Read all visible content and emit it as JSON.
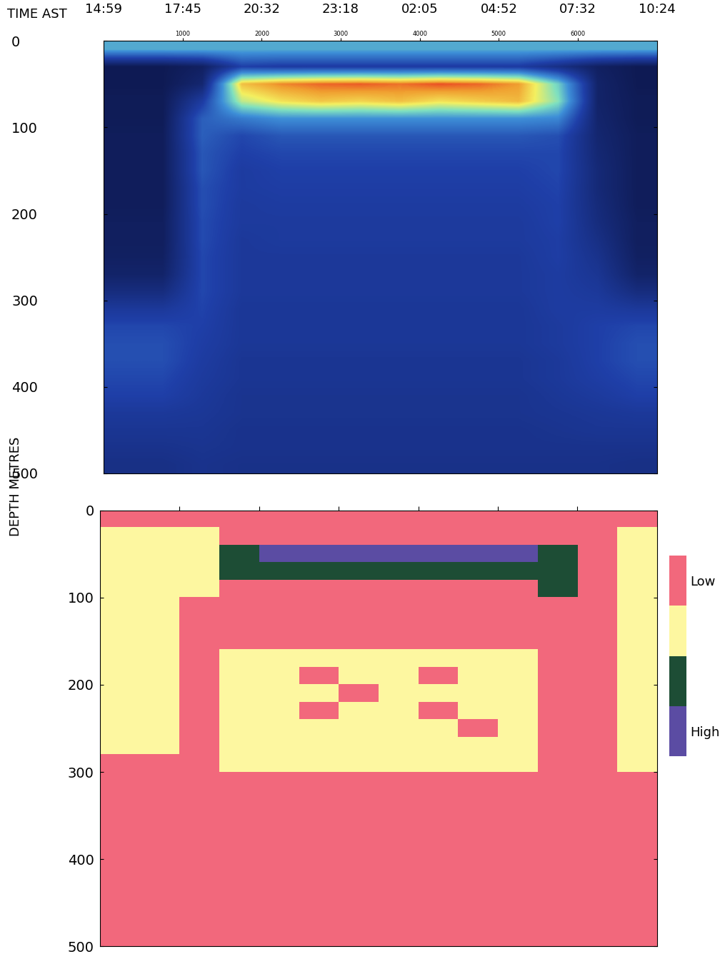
{
  "chart_data": [
    {
      "type": "heatmap",
      "x2_label": "TIME AST",
      "y_label": "DEPTH METRES",
      "xlim": [
        0,
        7000
      ],
      "ylim": [
        500,
        0
      ],
      "xticks": [
        1000,
        2000,
        3000,
        4000,
        5000,
        6000
      ],
      "yticks": [
        0,
        100,
        200,
        300,
        400,
        500
      ],
      "x2ticks": [
        {
          "value": 0,
          "label": "14:59"
        },
        {
          "value": 1000,
          "label": "17:45"
        },
        {
          "value": 2000,
          "label": "20:32"
        },
        {
          "value": 3000,
          "label": "23:18"
        },
        {
          "value": 4000,
          "label": "02:05"
        },
        {
          "value": 5000,
          "label": "04:52"
        },
        {
          "value": 6000,
          "label": "07:32"
        },
        {
          "value": 7000,
          "label": "10:24"
        }
      ],
      "color_range": [
        0,
        100
      ],
      "cells": [
        [
          55,
          55,
          55,
          55,
          55,
          55,
          55,
          55,
          55,
          55,
          55,
          55,
          55,
          55
        ],
        [
          6,
          6,
          10,
          30,
          28,
          28,
          28,
          28,
          28,
          28,
          28,
          20,
          10,
          6
        ],
        [
          6,
          6,
          14,
          85,
          92,
          95,
          96,
          94,
          97,
          95,
          90,
          62,
          12,
          6
        ],
        [
          7,
          7,
          28,
          72,
          80,
          84,
          82,
          85,
          80,
          83,
          86,
          66,
          12,
          7
        ],
        [
          7,
          7,
          38,
          45,
          50,
          50,
          50,
          50,
          50,
          50,
          50,
          48,
          13,
          7
        ],
        [
          8,
          8,
          38,
          32,
          36,
          36,
          36,
          36,
          36,
          36,
          36,
          34,
          14,
          8
        ],
        [
          8,
          8,
          36,
          30,
          32,
          32,
          32,
          32,
          32,
          32,
          32,
          32,
          15,
          8
        ],
        [
          8,
          8,
          36,
          28,
          30,
          30,
          30,
          30,
          30,
          30,
          30,
          32,
          16,
          8
        ],
        [
          8,
          8,
          34,
          28,
          29,
          29,
          29,
          29,
          29,
          29,
          29,
          31,
          16,
          8
        ],
        [
          8,
          8,
          34,
          27,
          28,
          28,
          28,
          28,
          28,
          28,
          28,
          30,
          17,
          8
        ],
        [
          9,
          9,
          33,
          27,
          27,
          27,
          27,
          27,
          27,
          27,
          27,
          30,
          18,
          9
        ],
        [
          9,
          9,
          33,
          26,
          27,
          27,
          27,
          27,
          27,
          27,
          27,
          29,
          20,
          9
        ],
        [
          10,
          10,
          32,
          26,
          26,
          26,
          26,
          26,
          26,
          26,
          26,
          29,
          22,
          10
        ],
        [
          12,
          12,
          32,
          26,
          26,
          26,
          26,
          26,
          26,
          26,
          26,
          28,
          24,
          12
        ],
        [
          18,
          18,
          32,
          26,
          26,
          26,
          26,
          26,
          26,
          26,
          26,
          28,
          26,
          18
        ],
        [
          26,
          26,
          31,
          25,
          25,
          25,
          25,
          25,
          25,
          25,
          25,
          28,
          28,
          26
        ],
        [
          32,
          32,
          30,
          25,
          25,
          25,
          25,
          25,
          25,
          25,
          25,
          27,
          30,
          32
        ],
        [
          34,
          34,
          29,
          25,
          25,
          25,
          25,
          25,
          25,
          25,
          25,
          27,
          30,
          34
        ],
        [
          34,
          34,
          28,
          24,
          24,
          24,
          24,
          24,
          24,
          24,
          24,
          26,
          30,
          34
        ],
        [
          32,
          32,
          27,
          24,
          24,
          24,
          24,
          24,
          24,
          24,
          24,
          26,
          29,
          32
        ],
        [
          30,
          30,
          26,
          23,
          23,
          23,
          23,
          23,
          23,
          23,
          23,
          25,
          27,
          30
        ],
        [
          26,
          26,
          25,
          23,
          23,
          23,
          23,
          23,
          23,
          23,
          23,
          24,
          25,
          26
        ],
        [
          24,
          24,
          24,
          22,
          22,
          22,
          22,
          22,
          22,
          22,
          22,
          23,
          24,
          24
        ],
        [
          22,
          22,
          23,
          22,
          22,
          22,
          22,
          22,
          22,
          22,
          22,
          22,
          22,
          22
        ],
        [
          20,
          20,
          22,
          21,
          21,
          21,
          21,
          21,
          21,
          21,
          21,
          21,
          21,
          20
        ]
      ]
    },
    {
      "type": "heatmap",
      "xlim": [
        0,
        7000
      ],
      "ylim": [
        500,
        0
      ],
      "xticks": [
        1000,
        2000,
        3000,
        4000,
        5000,
        6000
      ],
      "yticks": [
        0,
        100,
        200,
        300,
        400,
        500
      ],
      "tick_labels": "y",
      "colors": [
        "#f2687c",
        "#fdf7a0",
        "#1d4d35",
        "#5b4ca3"
      ],
      "color_bounds": [
        0.5,
        1.5,
        2.5,
        3.5,
        4.5
      ],
      "color_range": [
        0.5,
        4.5
      ],
      "color_ticks": [
        {
          "value": 1,
          "label": "Low"
        },
        {
          "value": 4,
          "label": "High"
        }
      ],
      "cells": [
        [
          1,
          1,
          1,
          1,
          1,
          1,
          1,
          1,
          1,
          1,
          1,
          1,
          1,
          1
        ],
        [
          2,
          2,
          2,
          1,
          1,
          1,
          1,
          1,
          1,
          1,
          1,
          1,
          1,
          2
        ],
        [
          2,
          2,
          2,
          3,
          4,
          4,
          4,
          4,
          4,
          4,
          4,
          3,
          1,
          2
        ],
        [
          2,
          2,
          2,
          3,
          3,
          3,
          3,
          3,
          3,
          3,
          3,
          3,
          1,
          2
        ],
        [
          2,
          2,
          2,
          1,
          1,
          1,
          1,
          1,
          1,
          1,
          1,
          3,
          1,
          2
        ],
        [
          2,
          2,
          1,
          1,
          1,
          1,
          1,
          1,
          1,
          1,
          1,
          1,
          1,
          2
        ],
        [
          2,
          2,
          1,
          1,
          1,
          1,
          1,
          1,
          1,
          1,
          1,
          1,
          1,
          2
        ],
        [
          2,
          2,
          1,
          1,
          1,
          1,
          1,
          1,
          1,
          1,
          1,
          1,
          1,
          2
        ],
        [
          2,
          2,
          1,
          2,
          2,
          2,
          2,
          2,
          2,
          2,
          2,
          1,
          1,
          2
        ],
        [
          2,
          2,
          1,
          2,
          2,
          1,
          2,
          2,
          1,
          2,
          2,
          1,
          1,
          2
        ],
        [
          2,
          2,
          1,
          2,
          2,
          2,
          1,
          2,
          2,
          2,
          2,
          1,
          1,
          2
        ],
        [
          2,
          2,
          1,
          2,
          2,
          1,
          2,
          2,
          1,
          2,
          2,
          1,
          1,
          2
        ],
        [
          2,
          2,
          1,
          2,
          2,
          2,
          2,
          2,
          2,
          1,
          2,
          1,
          1,
          2
        ],
        [
          2,
          2,
          1,
          2,
          2,
          2,
          2,
          2,
          2,
          2,
          2,
          1,
          1,
          2
        ],
        [
          1,
          1,
          1,
          2,
          2,
          2,
          2,
          2,
          2,
          2,
          2,
          1,
          1,
          2
        ],
        [
          1,
          1,
          1,
          1,
          1,
          1,
          1,
          1,
          1,
          1,
          1,
          1,
          1,
          1
        ],
        [
          1,
          1,
          1,
          1,
          1,
          1,
          1,
          1,
          1,
          1,
          1,
          1,
          1,
          1
        ],
        [
          1,
          1,
          1,
          1,
          1,
          1,
          1,
          1,
          1,
          1,
          1,
          1,
          1,
          1
        ],
        [
          1,
          1,
          1,
          1,
          1,
          1,
          1,
          1,
          1,
          1,
          1,
          1,
          1,
          1
        ],
        [
          1,
          1,
          1,
          1,
          1,
          1,
          1,
          1,
          1,
          1,
          1,
          1,
          1,
          1
        ],
        [
          1,
          1,
          1,
          1,
          1,
          1,
          1,
          1,
          1,
          1,
          1,
          1,
          1,
          1
        ],
        [
          1,
          1,
          1,
          1,
          1,
          1,
          1,
          1,
          1,
          1,
          1,
          1,
          1,
          1
        ],
        [
          1,
          1,
          1,
          1,
          1,
          1,
          1,
          1,
          1,
          1,
          1,
          1,
          1,
          1
        ],
        [
          1,
          1,
          1,
          1,
          1,
          1,
          1,
          1,
          1,
          1,
          1,
          1,
          1,
          1
        ],
        [
          1,
          1,
          1,
          1,
          1,
          1,
          1,
          1,
          1,
          1,
          1,
          1,
          1,
          1
        ]
      ]
    }
  ]
}
